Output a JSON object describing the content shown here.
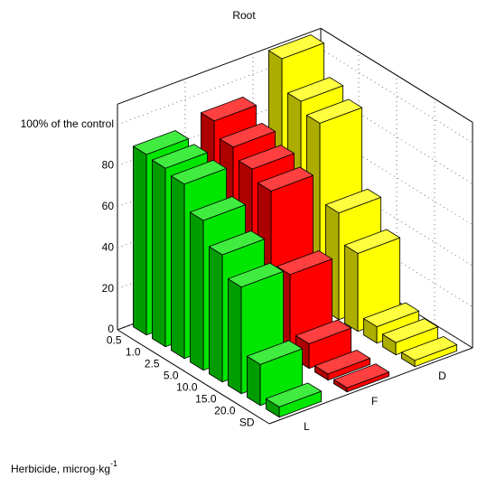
{
  "chart_data": {
    "type": "bar3d",
    "title": "Root",
    "xlabel": "Herbicide, microg·kg",
    "xlabel_superscript": "-1",
    "categories": [
      "0.5",
      "1.0",
      "2.5",
      "5.0",
      "10.0",
      "15.0",
      "20.0",
      "SD"
    ],
    "series": [
      {
        "name": "L",
        "color": "#00e600",
        "values": [
          88,
          87,
          85,
          73,
          62,
          52,
          20,
          5
        ]
      },
      {
        "name": "F",
        "color": "#ff0000",
        "values": [
          92,
          85,
          80,
          75,
          40,
          12,
          3,
          2
        ]
      },
      {
        "name": "D",
        "color": "#ffff00",
        "values": [
          110,
          95,
          90,
          52,
          38,
          8,
          6,
          3
        ]
      }
    ],
    "ylim": [
      0,
      110
    ],
    "yticks": [
      0,
      20,
      40,
      60,
      80,
      {
        "value": 100,
        "label": "100% of the control"
      }
    ],
    "grid": true
  }
}
